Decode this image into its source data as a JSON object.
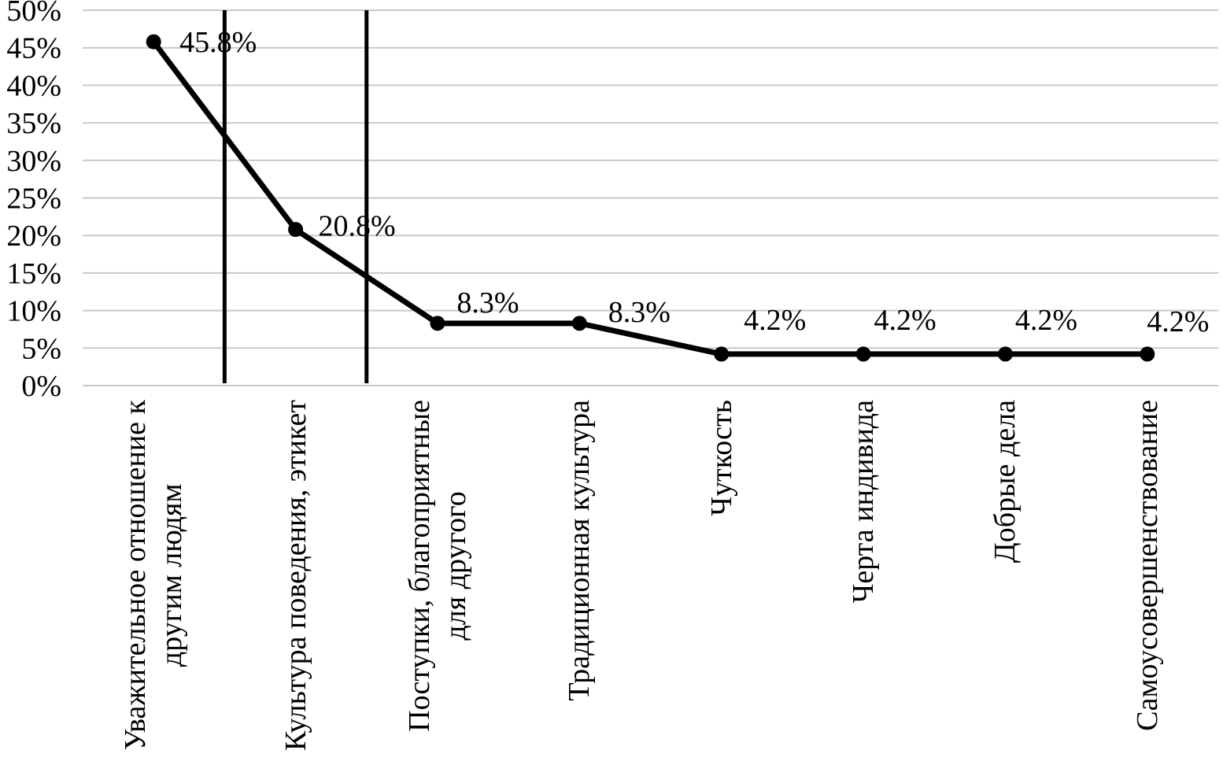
{
  "chart_data": {
    "type": "line",
    "title": "",
    "categories": [
      "Уважительное отношение к\nдругим людям",
      "Культура поведения, этикет",
      "Поступки, благоприятные\nдля другого",
      "Традиционная культура",
      "Чуткость",
      "Черта индивида",
      "Добрые дела",
      "Самоусовершенствование"
    ],
    "values": [
      45.8,
      20.8,
      8.3,
      8.3,
      4.2,
      4.2,
      4.2,
      4.2
    ],
    "data_labels": [
      "45.8%",
      "20.8%",
      "8.3%",
      "8.3%",
      "4.2%",
      "4.2%",
      "4.2%",
      "4.2%"
    ],
    "y_ticks": [
      "0%",
      "5%",
      "10%",
      "15%",
      "20%",
      "25%",
      "30%",
      "35%",
      "40%",
      "45%",
      "50%"
    ],
    "ylim": [
      0,
      50
    ],
    "y_step": 5,
    "xlabel": "",
    "ylabel": "",
    "grid": "horizontal",
    "legend": "none",
    "series_color": "#000000",
    "gridline_color": "#c9c9c9",
    "marker": "circle",
    "annotations": {
      "vertical_separator_lines_after_category": [
        1,
        2
      ],
      "separator_color": "#000000"
    }
  }
}
